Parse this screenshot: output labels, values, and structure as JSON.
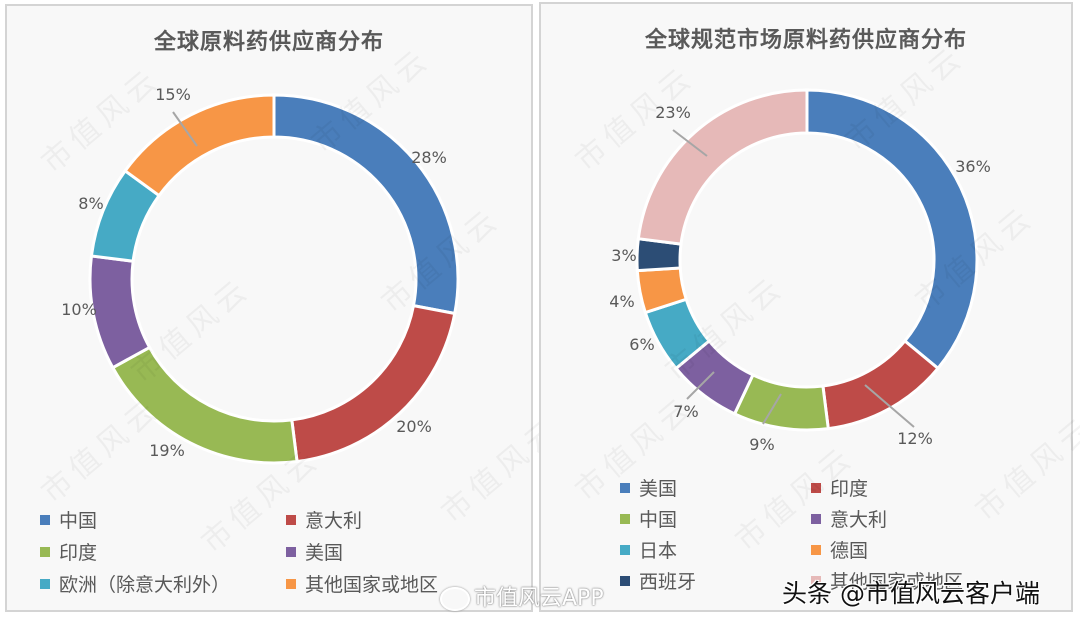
{
  "chart_data": [
    {
      "type": "pie",
      "subtype": "donut",
      "title": "全球原料药供应商分布",
      "categories": [
        "中国",
        "意大利",
        "印度",
        "美国",
        "欧洲（除意大利外）",
        "其他国家或地区"
      ],
      "values": [
        28,
        20,
        19,
        10,
        8,
        15
      ],
      "labels": [
        "28%",
        "20%",
        "19%",
        "10%",
        "8%",
        "15%"
      ],
      "colors": [
        "#4a7ebb",
        "#be4b48",
        "#98b954",
        "#7d60a0",
        "#46aac5",
        "#f79646"
      ],
      "legend_position": "bottom",
      "legend_columns": 2
    },
    {
      "type": "pie",
      "subtype": "donut",
      "title": "全球规范市场原料药供应商分布",
      "categories": [
        "美国",
        "印度",
        "中国",
        "意大利",
        "日本",
        "德国",
        "西班牙",
        "其他国家或地区"
      ],
      "values": [
        36,
        12,
        9,
        7,
        6,
        4,
        3,
        23
      ],
      "labels": [
        "36%",
        "12%",
        "9%",
        "7%",
        "6%",
        "4%",
        "3%",
        "23%"
      ],
      "colors": [
        "#4a7ebb",
        "#be4b48",
        "#98b954",
        "#7d60a0",
        "#46aac5",
        "#f79646",
        "#2c4d75",
        "#e6b9b8"
      ],
      "legend_position": "bottom",
      "legend_columns": 2
    }
  ],
  "left": {
    "title": "全球原料药供应商分布",
    "legend": [
      {
        "label": "中国",
        "color": "#4a7ebb"
      },
      {
        "label": "意大利",
        "color": "#be4b48"
      },
      {
        "label": "印度",
        "color": "#98b954"
      },
      {
        "label": "美国",
        "color": "#7d60a0"
      },
      {
        "label": "欧洲（除意大利外）",
        "color": "#46aac5"
      },
      {
        "label": "其他国家或地区",
        "color": "#f79646"
      }
    ]
  },
  "right": {
    "title": "全球规范市场原料药供应商分布",
    "legend": [
      {
        "label": "美国",
        "color": "#4a7ebb"
      },
      {
        "label": "印度",
        "color": "#be4b48"
      },
      {
        "label": "中国",
        "color": "#98b954"
      },
      {
        "label": "意大利",
        "color": "#7d60a0"
      },
      {
        "label": "日本",
        "color": "#46aac5"
      },
      {
        "label": "德国",
        "color": "#f79646"
      },
      {
        "label": "西班牙",
        "color": "#2c4d75"
      },
      {
        "label": "其他国家或地区",
        "color": "#e6b9b8"
      }
    ]
  },
  "watermarks": {
    "weibo": "市值风云APP",
    "toutiao": "头条 @市值风云客户端",
    "tile": "市值风云"
  }
}
